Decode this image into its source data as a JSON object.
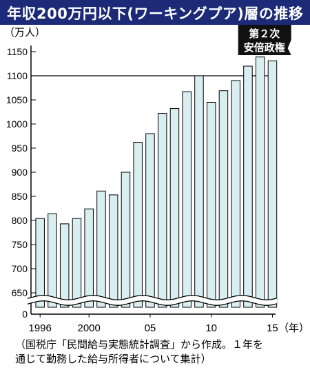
{
  "title": "年収200万円以下(ワーキングプア)層の推移",
  "caption": "（国税庁「民間給与実態統計調査」から作成。１年を\n通じて勤務した給与所得者について集計）",
  "chart_data": {
    "type": "bar",
    "ylabel": "（万人）",
    "xlabel": "（年）",
    "y_axis_break": true,
    "ylim": [
      600,
      1150
    ],
    "yticks": [
      "0",
      "650",
      "700",
      "750",
      "800",
      "850",
      "900",
      "950",
      "1000",
      "1050",
      "1100",
      "1150"
    ],
    "reference_line": 1100,
    "years": [
      1996,
      1997,
      1998,
      1999,
      2000,
      2001,
      2002,
      2003,
      2004,
      2005,
      2006,
      2007,
      2008,
      2009,
      2010,
      2011,
      2012,
      2013,
      2014,
      2015
    ],
    "xticklabels": [
      {
        "year": 1996,
        "label": "1996"
      },
      {
        "year": 2000,
        "label": "2000"
      },
      {
        "year": 2005,
        "label": "05"
      },
      {
        "year": 2010,
        "label": "10"
      },
      {
        "year": 2015,
        "label": "15"
      }
    ],
    "values": [
      804,
      814,
      793,
      804,
      824,
      861,
      853,
      900,
      962,
      980,
      1022,
      1032,
      1067,
      1100,
      1045,
      1069,
      1090,
      1120,
      1139,
      1131
    ],
    "annotation": {
      "text": "第２次\n安倍政権",
      "start_year": 2013,
      "end_year": 2015
    },
    "colors": {
      "title_bg": "#1c2a78",
      "bar_fill": "#d8eef0",
      "bar_stroke": "#000000",
      "annotation_bg": "#111111"
    }
  }
}
